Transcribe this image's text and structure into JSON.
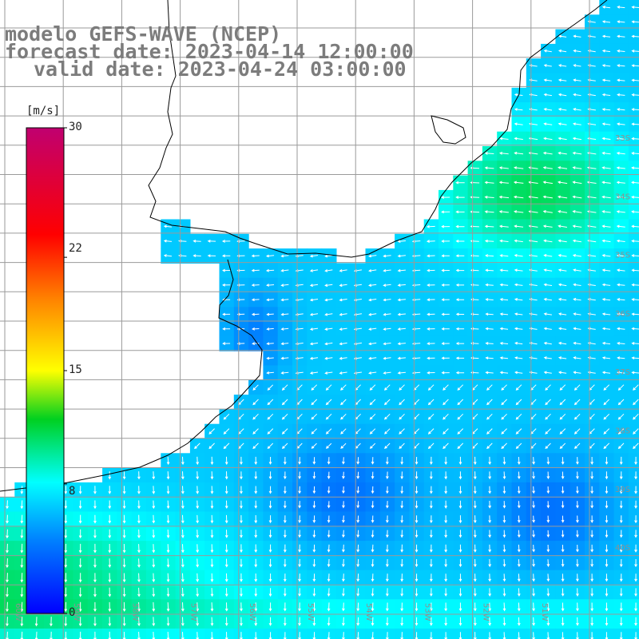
{
  "title": {
    "line1": "modelo GEFS-WAVE (NCEP)",
    "line2": "forecast date: 2023-04-14 12:00:00",
    "line3": "valid date: 2023-04-24 03:00:00"
  },
  "colorbar": {
    "unit": "[m/s]",
    "ticks": [
      "30",
      "22",
      "15",
      "8",
      "0"
    ],
    "tick_values": [
      30,
      22,
      15,
      8,
      0
    ],
    "range": [
      0,
      30
    ]
  },
  "map": {
    "lat_labels": [
      "33S",
      "34S",
      "35S",
      "36S",
      "37S",
      "38S",
      "39S",
      "40S"
    ],
    "lon_labels": [
      "60W",
      "59W",
      "58W",
      "57W",
      "56W",
      "55W",
      "54W",
      "53W",
      "52W",
      "51W"
    ],
    "field": "wind speed",
    "colors": {
      "land": "#ffffff",
      "coast": "#000000",
      "grid": "#9a9a9a",
      "arrow": "#ffffff",
      "low_speed": "#0a2aff",
      "mid_speed": "#00e6ff",
      "high_speed": "#20ff20"
    }
  }
}
